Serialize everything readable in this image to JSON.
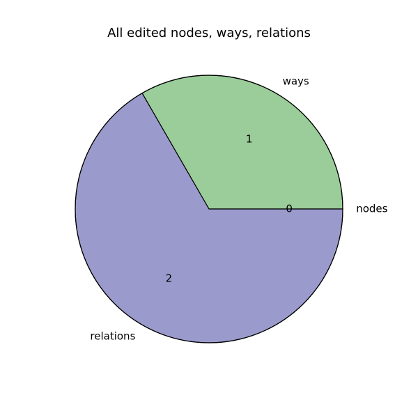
{
  "chart_data": {
    "type": "pie",
    "title": "All edited nodes, ways, relations",
    "categories": [
      "nodes",
      "ways",
      "relations"
    ],
    "values": [
      0,
      1,
      2
    ],
    "value_labels": [
      "0",
      "1",
      "2"
    ],
    "colors": [
      "#c9b3d6",
      "#9acd99",
      "#9a9acc"
    ],
    "start_angle_deg": 0,
    "direction": "counterclockwise",
    "edge_color": "#000000",
    "legend": "none"
  }
}
